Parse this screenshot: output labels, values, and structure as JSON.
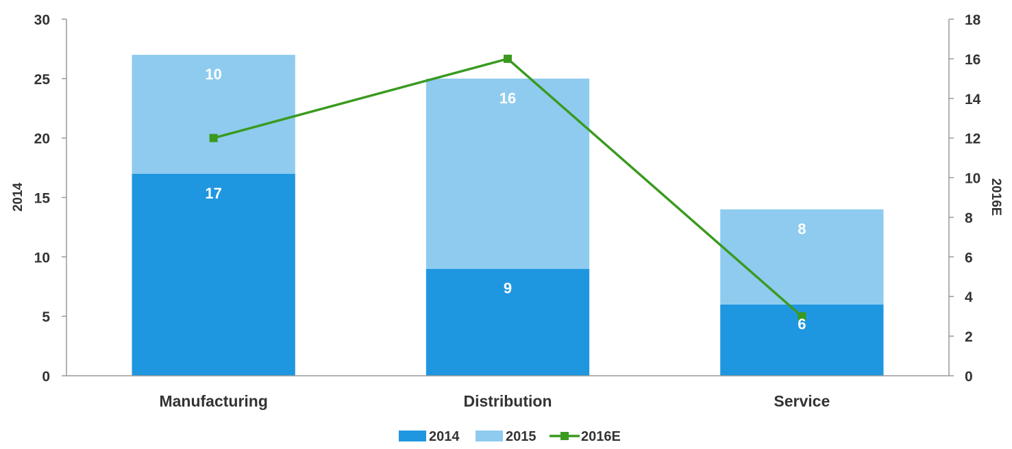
{
  "chart_data": {
    "type": "bar",
    "stacked": true,
    "categories": [
      "Manufacturing",
      "Distribution",
      "Service"
    ],
    "series": [
      {
        "name": "2014",
        "type": "bar",
        "axis": "left",
        "color": "#1f97e0",
        "values": [
          17,
          9,
          6
        ]
      },
      {
        "name": "2015",
        "type": "bar",
        "axis": "left",
        "color": "#8ecbef",
        "values": [
          10,
          16,
          8
        ]
      },
      {
        "name": "2016E",
        "type": "line",
        "axis": "right",
        "color": "#3a9a1f",
        "values": [
          12,
          16,
          3
        ]
      }
    ],
    "ylabel": "2014",
    "y2label": "2016E",
    "ylim": [
      0,
      30
    ],
    "yticks": [
      "0",
      "5",
      "10",
      "15",
      "20",
      "25",
      "30"
    ],
    "y2lim": [
      0,
      18
    ],
    "y2ticks": [
      "0",
      "2",
      "4",
      "6",
      "8",
      "10",
      "12",
      "14",
      "16",
      "18"
    ],
    "legend": {
      "placement": "bottom",
      "entries": [
        "2014",
        "2015",
        "2016E"
      ]
    },
    "grid": false,
    "data_labels": {
      "2014": [
        "17",
        "9",
        "6"
      ],
      "2015": [
        "10",
        "16",
        "8"
      ]
    }
  }
}
